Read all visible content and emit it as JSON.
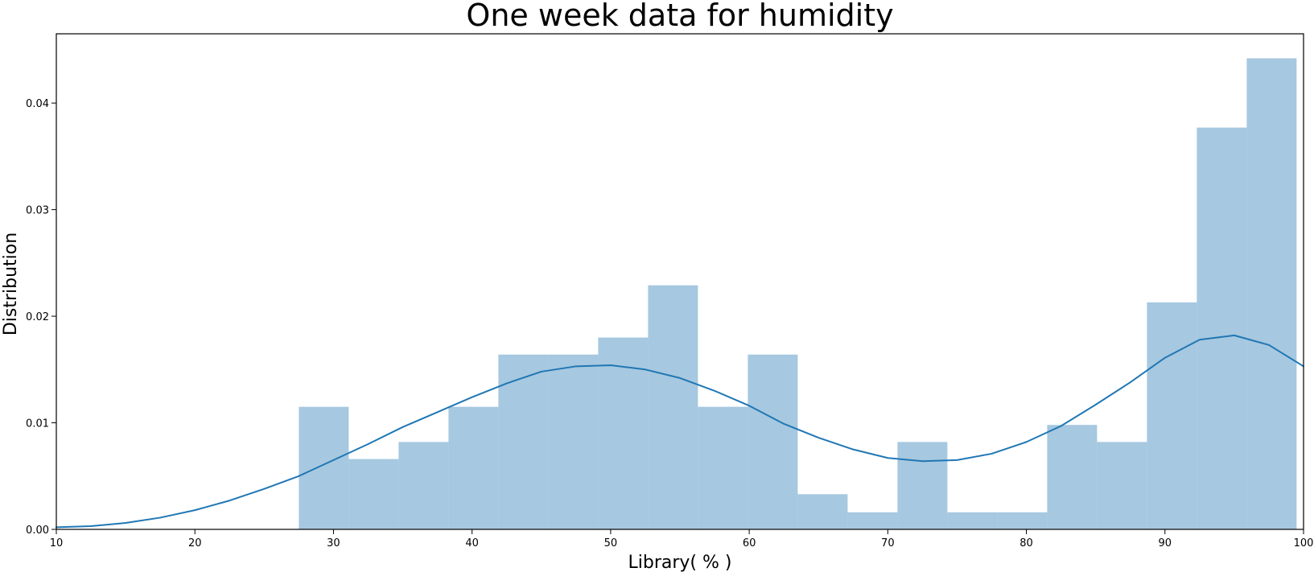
{
  "chart_data": {
    "type": "bar",
    "title": "One week data for humidity",
    "xlabel": "Library( % )",
    "ylabel": "Distribution",
    "xlim": [
      10,
      100
    ],
    "ylim": [
      0,
      0.0465
    ],
    "x_ticks": [
      10,
      20,
      30,
      40,
      50,
      60,
      70,
      80,
      90,
      100
    ],
    "x_tick_labels": [
      "10",
      "20",
      "30",
      "40",
      "50",
      "60",
      "70",
      "80",
      "90",
      "100"
    ],
    "y_ticks": [
      0,
      0.01,
      0.02,
      0.03,
      0.04
    ],
    "y_tick_labels": [
      "0.00",
      "0.01",
      "0.02",
      "0.03",
      "0.04"
    ],
    "grid": false,
    "legend": "none",
    "colors": {
      "bars": "#a6c8e0",
      "kde_line": "#1f77b4",
      "axes": "#000000"
    },
    "series": [
      {
        "type": "histogram",
        "bins": [
          {
            "x0": 27.5,
            "x1": 31.1,
            "density": 0.0115
          },
          {
            "x0": 31.1,
            "x1": 34.7,
            "density": 0.0066
          },
          {
            "x0": 34.7,
            "x1": 38.3,
            "density": 0.0082
          },
          {
            "x0": 38.3,
            "x1": 41.9,
            "density": 0.0115
          },
          {
            "x0": 41.9,
            "x1": 45.5,
            "density": 0.0164
          },
          {
            "x0": 45.5,
            "x1": 49.1,
            "density": 0.0164
          },
          {
            "x0": 49.1,
            "x1": 52.7,
            "density": 0.018
          },
          {
            "x0": 52.7,
            "x1": 56.3,
            "density": 0.0229
          },
          {
            "x0": 56.3,
            "x1": 59.9,
            "density": 0.0115
          },
          {
            "x0": 59.9,
            "x1": 63.5,
            "density": 0.0164
          },
          {
            "x0": 63.5,
            "x1": 67.1,
            "density": 0.0033
          },
          {
            "x0": 67.1,
            "x1": 70.7,
            "density": 0.0016
          },
          {
            "x0": 70.7,
            "x1": 74.3,
            "density": 0.0082
          },
          {
            "x0": 74.3,
            "x1": 77.9,
            "density": 0.0016
          },
          {
            "x0": 77.9,
            "x1": 81.5,
            "density": 0.0016
          },
          {
            "x0": 81.5,
            "x1": 85.1,
            "density": 0.0098
          },
          {
            "x0": 85.1,
            "x1": 88.7,
            "density": 0.0082
          },
          {
            "x0": 88.7,
            "x1": 92.3,
            "density": 0.0213
          },
          {
            "x0": 92.3,
            "x1": 95.9,
            "density": 0.0377
          },
          {
            "x0": 95.9,
            "x1": 99.5,
            "density": 0.0442
          }
        ]
      },
      {
        "type": "line",
        "x": [
          10,
          12.5,
          15,
          17.5,
          20,
          22.5,
          25,
          27.5,
          30,
          32.5,
          35,
          37.5,
          40,
          42.5,
          45,
          47.5,
          50,
          52.5,
          55,
          57.5,
          60,
          62.5,
          65,
          67.5,
          70,
          72.5,
          75,
          77.5,
          80,
          82.5,
          85,
          87.5,
          90,
          92.5,
          95,
          97.5,
          100
        ],
        "y": [
          0.0002,
          0.0003,
          0.0006,
          0.0011,
          0.0018,
          0.0027,
          0.0038,
          0.005,
          0.0065,
          0.008,
          0.0096,
          0.011,
          0.0124,
          0.0137,
          0.0148,
          0.0153,
          0.0154,
          0.015,
          0.0142,
          0.013,
          0.0116,
          0.0099,
          0.0086,
          0.0075,
          0.0067,
          0.0064,
          0.0065,
          0.0071,
          0.0082,
          0.0097,
          0.0117,
          0.0138,
          0.0161,
          0.0178,
          0.0182,
          0.0173,
          0.0153
        ]
      }
    ]
  }
}
